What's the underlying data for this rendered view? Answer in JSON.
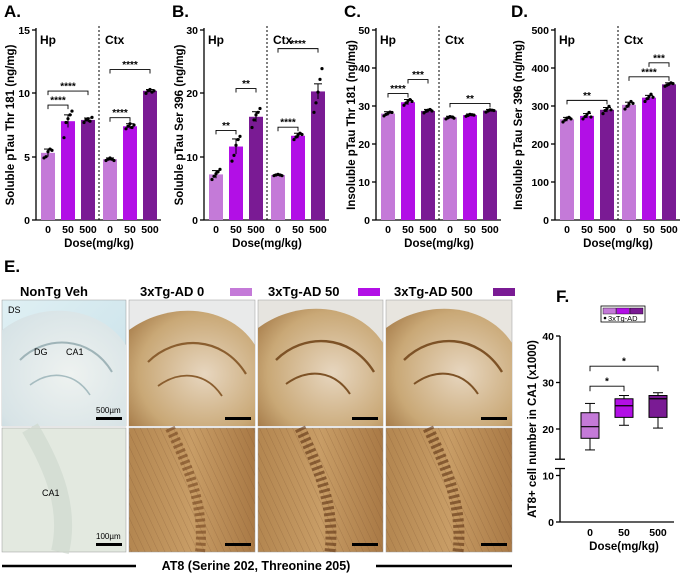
{
  "colors": {
    "dose0": "#c47ad8",
    "dose50": "#b20fe6",
    "dose500": "#7a1b94",
    "tissue": "#c9a06e",
    "bg_blue": "#d6eaf0"
  },
  "panel_letters": {
    "A": "A.",
    "B": "B.",
    "C": "C.",
    "D": "D.",
    "E": "E.",
    "F": "F."
  },
  "chart_data": [
    {
      "id": "A",
      "type": "bar",
      "ylabel": "Soluble pTau Thr 181 (ng/mg)",
      "xlabel": "Dose(mg/kg)",
      "ylim": [
        0,
        15
      ],
      "yticks": [
        "0",
        "5",
        "10",
        "15"
      ],
      "regions": [
        "Hp",
        "Ctx"
      ],
      "categories": [
        "0",
        "50",
        "500",
        "0",
        "50",
        "500"
      ],
      "values": [
        5.3,
        7.8,
        7.9,
        4.8,
        7.4,
        10.2
      ],
      "errors": [
        0.3,
        0.5,
        0.15,
        0.1,
        0.2,
        0.1
      ],
      "points": [
        [
          4.9,
          5.0,
          5.4,
          5.6,
          5.5
        ],
        [
          6.5,
          7.7,
          8.0,
          8.3,
          8.6
        ],
        [
          7.7,
          7.9,
          8.0,
          7.8,
          8.1
        ],
        [
          4.7,
          4.8,
          4.9,
          4.8,
          4.7
        ],
        [
          7.2,
          7.4,
          7.6,
          7.3,
          7.5
        ],
        [
          10.0,
          10.2,
          10.3,
          10.1,
          10.2
        ]
      ],
      "brackets": [
        {
          "from": 0,
          "to": 1,
          "label": "****"
        },
        {
          "from": 0,
          "to": 2,
          "label": "****"
        },
        {
          "from": 3,
          "to": 4,
          "label": "****"
        },
        {
          "from": 3,
          "to": 5,
          "label": "****"
        }
      ]
    },
    {
      "id": "B",
      "type": "bar",
      "ylabel": "Soluble pTau Ser 396 (ng/mg)",
      "xlabel": "Dose(mg/kg)",
      "ylim": [
        0,
        30
      ],
      "yticks": [
        "0",
        "10",
        "20",
        "30"
      ],
      "regions": [
        "Hp",
        "Ctx"
      ],
      "categories": [
        "0",
        "50",
        "500",
        "0",
        "50",
        "500"
      ],
      "values": [
        7.2,
        11.6,
        16.3,
        7.1,
        13.3,
        20.3
      ],
      "errors": [
        0.6,
        1.2,
        0.8,
        0.1,
        0.4,
        1.2
      ],
      "points": [
        [
          6.4,
          6.9,
          7.3,
          7.6,
          8.0
        ],
        [
          9.3,
          10.2,
          11.8,
          12.7,
          13.2
        ],
        [
          14.6,
          15.8,
          16.6,
          17.0,
          17.6
        ],
        [
          7.0,
          7.1,
          7.2,
          7.1,
          7.0
        ],
        [
          12.7,
          13.1,
          13.4,
          13.7,
          13.5
        ],
        [
          17.0,
          18.5,
          20.2,
          22.2,
          23.9
        ]
      ],
      "brackets": [
        {
          "from": 0,
          "to": 1,
          "label": "**"
        },
        {
          "from": 1,
          "to": 2,
          "label": "**"
        },
        {
          "from": 3,
          "to": 4,
          "label": "****"
        },
        {
          "from": 3,
          "to": 5,
          "label": "****"
        }
      ]
    },
    {
      "id": "C",
      "type": "bar",
      "ylabel": "Insoluble pTau Thr 181 (ng/mg)",
      "xlabel": "Dose(mg/kg)",
      "ylim": [
        0,
        50
      ],
      "yticks": [
        "0",
        "10",
        "20",
        "30",
        "40",
        "50"
      ],
      "regions": [
        "Hp",
        "Ctx"
      ],
      "categories": [
        "0",
        "50",
        "500",
        "0",
        "50",
        "500"
      ],
      "values": [
        28.0,
        31.0,
        28.7,
        27.0,
        27.6,
        28.8
      ],
      "errors": [
        0.5,
        0.7,
        0.4,
        0.3,
        0.3,
        0.3
      ],
      "points": [
        [
          27.4,
          27.8,
          28.1,
          28.4,
          28.3
        ],
        [
          30.2,
          30.8,
          31.3,
          31.7,
          31.2
        ],
        [
          28.2,
          28.6,
          28.9,
          29.1,
          28.7
        ],
        [
          26.6,
          26.9,
          27.2,
          27.1,
          26.8
        ],
        [
          27.3,
          27.5,
          27.8,
          27.7,
          27.6
        ],
        [
          28.4,
          28.7,
          29.0,
          28.9,
          28.8
        ]
      ],
      "brackets": [
        {
          "from": 0,
          "to": 1,
          "label": "****"
        },
        {
          "from": 1,
          "to": 2,
          "label": "***"
        },
        {
          "from": 3,
          "to": 5,
          "label": "**"
        }
      ]
    },
    {
      "id": "D",
      "type": "bar",
      "ylabel": "Insoluble pTau Ser 396 (ng/mg)",
      "xlabel": "Dose(mg/kg)",
      "ylim": [
        0,
        500
      ],
      "yticks": [
        "0",
        "100",
        "200",
        "300",
        "400",
        "500"
      ],
      "regions": [
        "Hp",
        "Ctx"
      ],
      "categories": [
        "0",
        "50",
        "500",
        "0",
        "50",
        "500"
      ],
      "values": [
        265,
        274,
        290,
        303,
        322,
        357
      ],
      "errors": [
        5,
        6,
        6,
        7,
        6,
        4
      ],
      "points": [
        [
          258,
          263,
          268,
          270,
          266
        ],
        [
          266,
          272,
          278,
          283,
          271
        ],
        [
          280,
          288,
          293,
          299,
          290
        ],
        [
          292,
          299,
          305,
          312,
          307
        ],
        [
          312,
          319,
          325,
          331,
          323
        ],
        [
          352,
          355,
          358,
          361,
          359
        ]
      ],
      "brackets": [
        {
          "from": 0,
          "to": 2,
          "label": "**"
        },
        {
          "from": 3,
          "to": 5,
          "label": "****"
        },
        {
          "from": 4,
          "to": 5,
          "label": "***"
        }
      ]
    },
    {
      "id": "F",
      "type": "box",
      "ylabel": "AT8+ cell number in CA1 (x1000)",
      "xlabel": "Dose(mg/kg)",
      "ylim": [
        0,
        40
      ],
      "yticks": [
        "0",
        "10",
        "20",
        "30",
        "40"
      ],
      "categories": [
        "0",
        "50",
        "500"
      ],
      "boxes": [
        {
          "min": 15.5,
          "q1": 18.0,
          "median": 20.5,
          "q3": 23.5,
          "max": 25.5
        },
        {
          "min": 20.8,
          "q1": 22.5,
          "median": 25.0,
          "q3": 26.5,
          "max": 27.2
        },
        {
          "min": 20.2,
          "q1": 22.5,
          "median": 26.5,
          "q3": 27.2,
          "max": 27.8
        }
      ],
      "legend": "3xTg-AD",
      "brackets": [
        {
          "from": 0,
          "to": 1,
          "label": "*"
        },
        {
          "from": 0,
          "to": 2,
          "label": "*"
        }
      ]
    }
  ],
  "panel_e": {
    "headers": [
      "NonTg Veh",
      "3xTg-AD 0",
      "3xTg-AD 50",
      "3xTg-AD 500"
    ],
    "label_ds": "DS",
    "label_dg": "DG",
    "label_ca1_top": "CA1",
    "label_ca1_bottom": "CA1",
    "scale_top": "500µm",
    "scale_bottom": "100µm",
    "caption": "AT8 (Serine 202, Threonine 205)"
  }
}
